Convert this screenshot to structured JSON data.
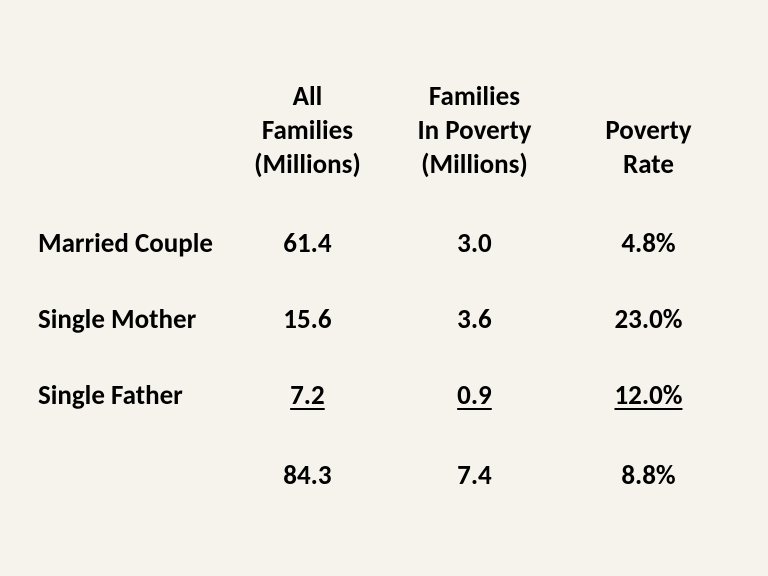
{
  "type": "table",
  "background_color": "#f5f3ec",
  "text_color": "#000000",
  "font_family": "Calibri",
  "header_fontsize": 27,
  "body_fontsize": 27,
  "font_weight": "bold",
  "col_widths_pct": [
    28,
    22,
    26,
    24
  ],
  "columns": {
    "c0": "",
    "c1": "All\nFamilies\n(Millions)",
    "c2": "Families\nIn Poverty\n(Millions)",
    "c3": "Poverty\nRate"
  },
  "rows": [
    {
      "label": "Married Couple",
      "all": "61.4",
      "poverty": "3.0",
      "rate": "4.8%",
      "underline": false
    },
    {
      "label": "Single Mother",
      "all": "15.6",
      "poverty": "3.6",
      "rate": "23.0%",
      "underline": false
    },
    {
      "label": "Single Father",
      "all": "7.2",
      "poverty": "0.9",
      "rate": "12.0%",
      "underline": true
    }
  ],
  "totals": {
    "label": "",
    "all": "84.3",
    "poverty": "7.4",
    "rate": "8.8%"
  }
}
